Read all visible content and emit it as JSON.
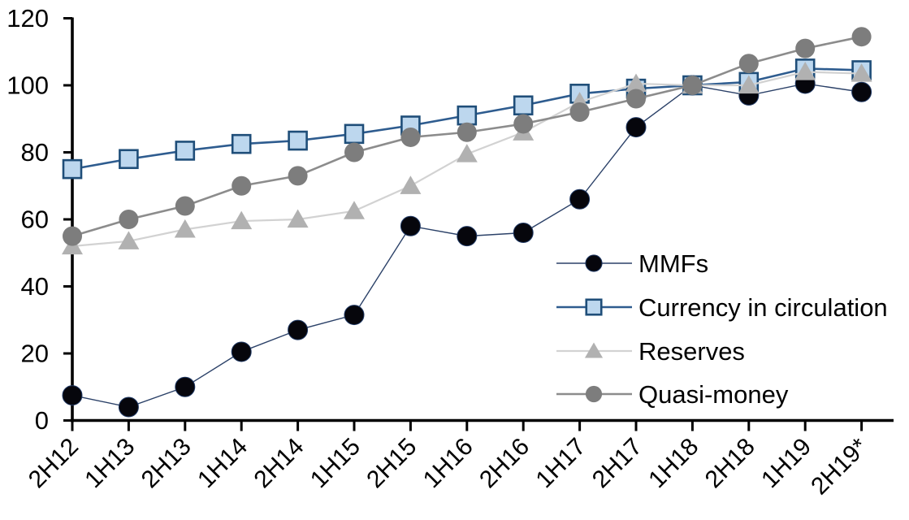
{
  "chart_data": {
    "type": "line",
    "title": "",
    "xlabel": "",
    "ylabel": "",
    "categories": [
      "2H12",
      "1H13",
      "2H13",
      "1H14",
      "2H14",
      "1H15",
      "2H15",
      "1H16",
      "2H16",
      "1H17",
      "2H17",
      "1H18",
      "2H18",
      "1H19",
      "2H19*"
    ],
    "series": [
      {
        "name": "MMFs",
        "values": [
          7.5,
          4,
          10,
          20.5,
          27,
          31.5,
          58,
          55,
          56,
          66,
          87.5,
          100,
          97,
          100.5,
          98
        ],
        "line_color": "#2b4168",
        "line_width": 1.4,
        "marker": {
          "shape": "circle",
          "fill": "#06060c",
          "stroke": "#1f3864",
          "stroke_width": 1,
          "size": 24
        }
      },
      {
        "name": "Currency in circulation",
        "values": [
          75,
          78,
          80.5,
          82.5,
          83.5,
          85.5,
          88,
          91,
          94,
          97.5,
          99,
          100,
          101,
          105,
          104.5
        ],
        "line_color": "#2e5c8f",
        "line_width": 2.6,
        "marker": {
          "shape": "square",
          "fill": "#bdd7ee",
          "stroke": "#1f4e79",
          "stroke_width": 2.6,
          "size": 22
        }
      },
      {
        "name": "Reserves",
        "values": [
          52,
          53.5,
          57,
          59.5,
          60,
          62.5,
          70,
          79.5,
          86,
          95,
          100.5,
          100,
          100,
          104,
          103.5
        ],
        "line_color": "#d2d2d2",
        "line_width": 2.2,
        "marker": {
          "shape": "triangle",
          "fill": "#b1b1b1",
          "stroke": "none",
          "stroke_width": 0,
          "size": 24
        }
      },
      {
        "name": "Quasi-money",
        "values": [
          55,
          60,
          64,
          70,
          73,
          80,
          84.5,
          86,
          88.5,
          92,
          96,
          100,
          106.5,
          111,
          114.5
        ],
        "line_color": "#8c8c8c",
        "line_width": 2.6,
        "marker": {
          "shape": "circle",
          "fill": "#7d7d7d",
          "stroke": "none",
          "stroke_width": 0,
          "size": 24
        }
      }
    ],
    "ylim": [
      0,
      120
    ],
    "yticks": [
      "0",
      "20",
      "40",
      "60",
      "80",
      "100",
      "120"
    ],
    "x_tick_rotation": 45,
    "grid": false,
    "legend_position": "center-right",
    "axis_color": "#000000",
    "background": "#ffffff"
  }
}
